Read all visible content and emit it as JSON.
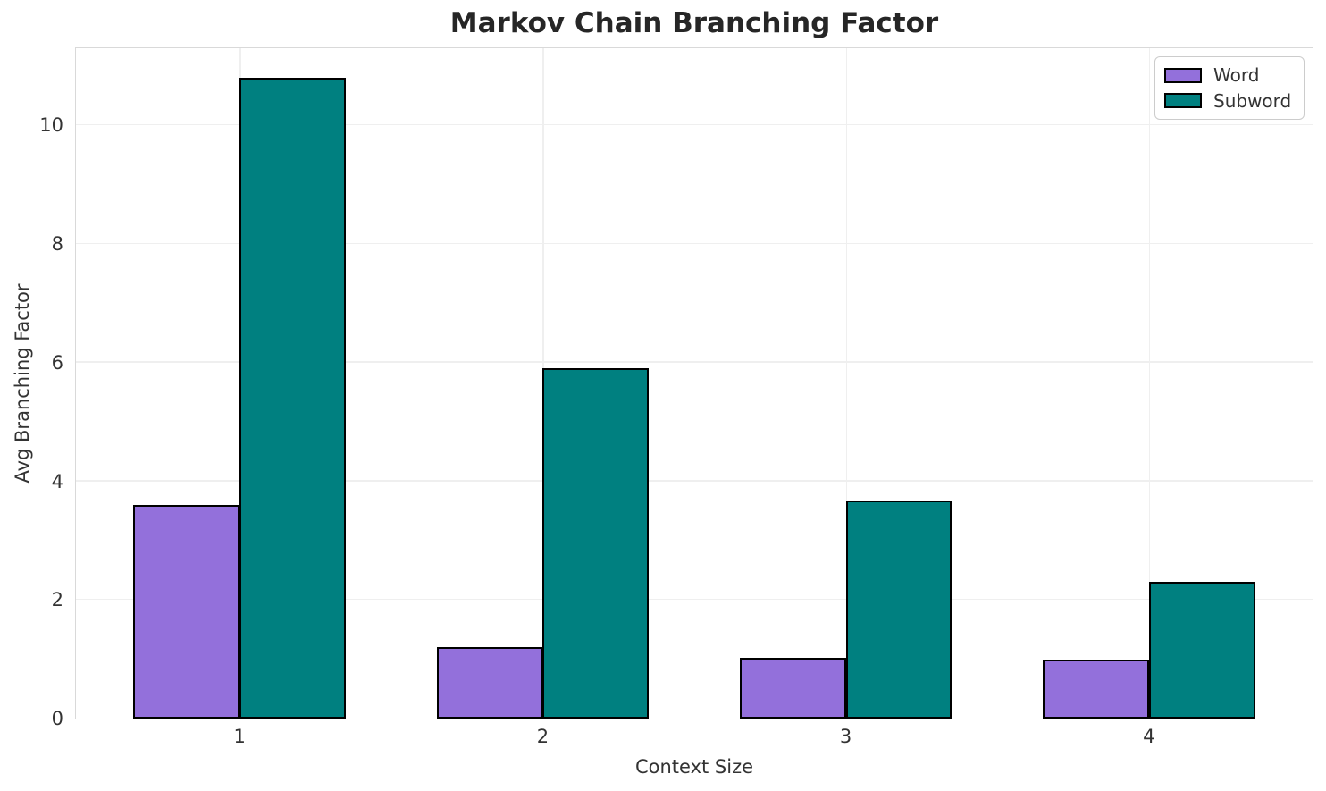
{
  "chart_data": {
    "type": "bar",
    "title": "Markov Chain Branching Factor",
    "xlabel": "Context Size",
    "ylabel": "Avg Branching Factor",
    "categories": [
      "1",
      "2",
      "3",
      "4"
    ],
    "x_positions": [
      1,
      2,
      3,
      4
    ],
    "series": [
      {
        "name": "Word",
        "color": "#9370DB",
        "values": [
          3.6,
          1.2,
          1.03,
          1.0
        ]
      },
      {
        "name": "Subword",
        "color": "#008080",
        "values": [
          10.8,
          5.9,
          3.67,
          2.3
        ]
      }
    ],
    "bar_width": 0.35,
    "bar_edge_color": "#000000",
    "ylim": [
      0,
      11.3
    ],
    "yticks": [
      0,
      2,
      4,
      6,
      8,
      10
    ],
    "xlim": [
      0.46,
      4.54
    ],
    "grid": true,
    "grid_color": "#efefef",
    "legend_position": "upper right"
  }
}
